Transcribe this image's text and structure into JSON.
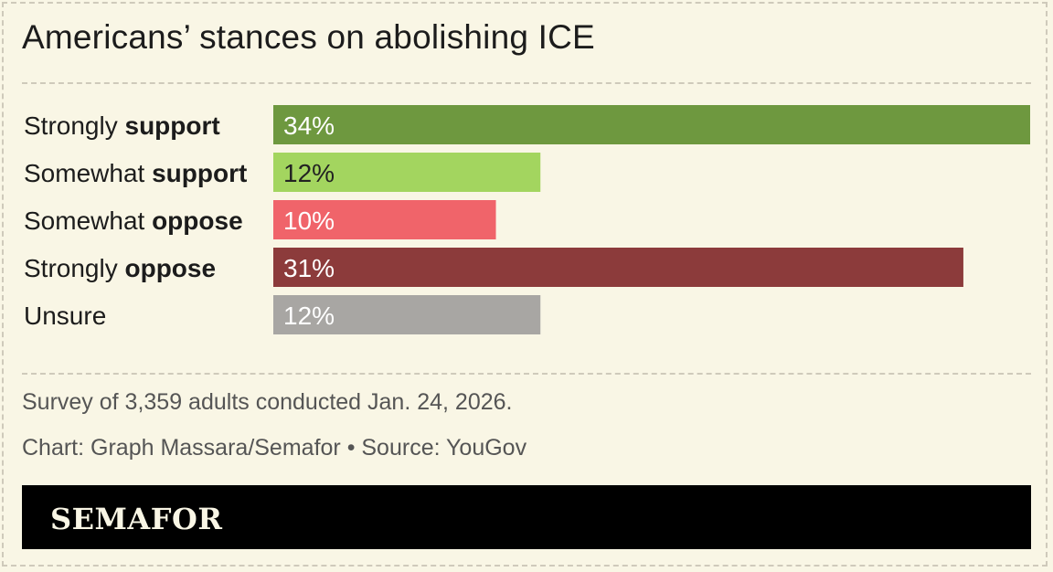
{
  "chart_data": {
    "type": "bar",
    "orientation": "horizontal",
    "title": "Americans’ stances on abolishing ICE",
    "categories": [
      {
        "prefix": "Strongly ",
        "emphasis": "support"
      },
      {
        "prefix": "Somewhat ",
        "emphasis": "support"
      },
      {
        "prefix": "Somewhat ",
        "emphasis": "oppose"
      },
      {
        "prefix": "Strongly ",
        "emphasis": "oppose"
      },
      {
        "prefix": "Unsure",
        "emphasis": ""
      }
    ],
    "values": [
      34,
      12,
      10,
      31,
      12
    ],
    "value_labels": [
      "34%",
      "12%",
      "10%",
      "31%",
      "12%"
    ],
    "colors": [
      "#6e983f",
      "#a3d55f",
      "#f0646a",
      "#8c3b3b",
      "#a8a6a3"
    ],
    "label_colors": [
      "#ffffff",
      "#222222",
      "#ffffff",
      "#ffffff",
      "#ffffff"
    ],
    "xlim": [
      0,
      34
    ],
    "grid": false,
    "legend": "none"
  },
  "footer": {
    "survey_note": "Survey of 3,359 adults conducted Jan. 24, 2026.",
    "credit": "Chart: Graph Massara/Semafor • Source: YouGov"
  },
  "brand": {
    "name": "SEMAFOR"
  }
}
